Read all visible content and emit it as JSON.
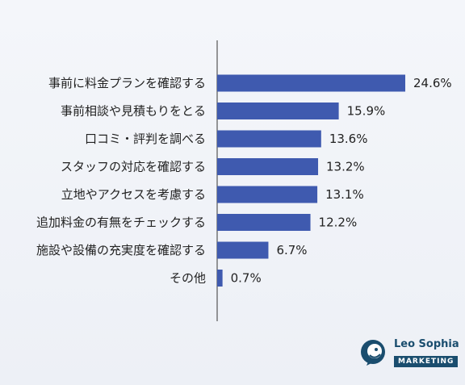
{
  "chart_data": {
    "type": "bar",
    "orientation": "horizontal",
    "categories": [
      "事前に料金プランを確認する",
      "事前相談や見積もりをとる",
      "口コミ・評判を調べる",
      "スタッフの対応を確認する",
      "立地やアクセスを考慮する",
      "追加料金の有無をチェックする",
      "施設や設備の充実度を確認する",
      "その他"
    ],
    "values": [
      24.6,
      15.9,
      13.6,
      13.2,
      13.1,
      12.2,
      6.7,
      0.7
    ],
    "value_labels": [
      "24.6%",
      "15.9%",
      "13.6%",
      "13.2%",
      "13.1%",
      "12.2%",
      "6.7%",
      "0.7%"
    ],
    "xlim": [
      0,
      24.6
    ],
    "bar_color": "#3f5aaf",
    "grid": false,
    "legend": "none"
  },
  "brand": {
    "name": "Leo Sophia",
    "sub": "MARKETING",
    "icon": "lion-head-icon",
    "color": "#1a4d6e"
  }
}
